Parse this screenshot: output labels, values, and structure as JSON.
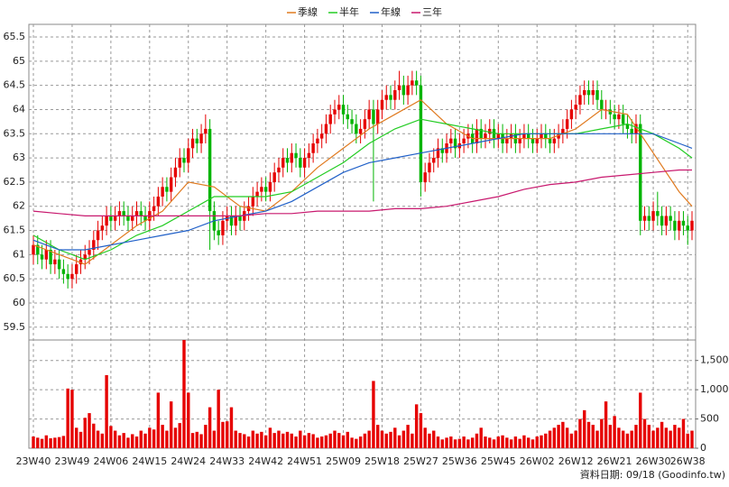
{
  "chart_data": {
    "type": "candlestick",
    "legend": "top",
    "grid": true,
    "up_color": "#e60000",
    "down_color": "#00b400",
    "footer": "資料日期: 09/18  (Goodinfo.tw)",
    "categories": [
      "23W40",
      null,
      null,
      null,
      null,
      null,
      null,
      null,
      null,
      "23W49",
      null,
      null,
      null,
      null,
      null,
      null,
      null,
      null,
      "24W06",
      null,
      null,
      null,
      null,
      null,
      null,
      null,
      null,
      "24W15",
      null,
      null,
      null,
      null,
      null,
      null,
      null,
      null,
      "24W24",
      null,
      null,
      null,
      null,
      null,
      null,
      null,
      null,
      "24W33",
      null,
      null,
      null,
      null,
      null,
      null,
      null,
      null,
      "24W42",
      null,
      null,
      null,
      null,
      null,
      null,
      null,
      null,
      "24W51",
      null,
      null,
      null,
      null,
      null,
      null,
      null,
      null,
      "25W09",
      null,
      null,
      null,
      null,
      null,
      null,
      null,
      null,
      "25W18",
      null,
      null,
      null,
      null,
      null,
      null,
      null,
      null,
      "25W27",
      null,
      null,
      null,
      null,
      null,
      null,
      null,
      null,
      "25W36",
      null,
      null,
      null,
      null,
      null,
      null,
      null,
      null,
      "25W45",
      null,
      null,
      null,
      null,
      null,
      null,
      null,
      null,
      "26W02",
      null,
      null,
      null,
      null,
      null,
      null,
      null,
      null,
      "26W12",
      null,
      null,
      null,
      null,
      null,
      null,
      null,
      null,
      "26W21",
      null,
      null,
      null,
      null,
      null,
      null,
      null,
      null,
      "26W30",
      null,
      null,
      null,
      null,
      null,
      null,
      null,
      "26W38",
      null
    ],
    "open": [
      61.0,
      61.2,
      61.0,
      60.9,
      61.1,
      60.8,
      60.9,
      60.7,
      60.6,
      60.5,
      60.6,
      60.8,
      60.9,
      61.0,
      61.1,
      61.3,
      61.5,
      61.6,
      61.8,
      61.7,
      61.8,
      61.9,
      61.8,
      61.7,
      61.8,
      61.9,
      61.8,
      61.7,
      61.9,
      62.0,
      62.2,
      62.4,
      62.3,
      62.6,
      62.8,
      63.0,
      62.9,
      63.2,
      63.4,
      63.3,
      63.5,
      63.6,
      61.9,
      61.5,
      61.4,
      61.7,
      61.8,
      61.6,
      61.8,
      61.7,
      61.9,
      62.0,
      62.2,
      62.3,
      62.4,
      62.3,
      62.5,
      62.7,
      62.8,
      63.0,
      62.9,
      63.1,
      63.0,
      62.8,
      63.0,
      63.1,
      63.3,
      63.4,
      63.5,
      63.7,
      63.9,
      64.0,
      64.1,
      63.9,
      63.8,
      63.7,
      63.5,
      63.6,
      63.8,
      64.0,
      63.7,
      64.0,
      64.2,
      64.3,
      64.2,
      64.4,
      64.5,
      64.3,
      64.5,
      64.6,
      64.5,
      62.5,
      62.7,
      62.9,
      63.0,
      63.2,
      63.1,
      63.3,
      63.4,
      63.2,
      63.3,
      63.4,
      63.5,
      63.3,
      63.6,
      63.4,
      63.5,
      63.6,
      63.4,
      63.5,
      63.3,
      63.4,
      63.5,
      63.3,
      63.4,
      63.5,
      63.4,
      63.3,
      63.4,
      63.5,
      63.4,
      63.3,
      63.4,
      63.5,
      63.6,
      63.8,
      64.0,
      64.1,
      64.3,
      64.4,
      64.3,
      64.4,
      64.2,
      64.0,
      64.0,
      63.9,
      63.8,
      63.9,
      63.7,
      63.6,
      63.5,
      63.7,
      61.7,
      61.8,
      61.7,
      61.9,
      61.8,
      61.6,
      61.8,
      61.7,
      61.5,
      61.7,
      61.6,
      61.5
    ],
    "high": [
      61.4,
      61.4,
      61.2,
      61.3,
      61.3,
      61.1,
      61.1,
      60.9,
      60.8,
      60.8,
      61.0,
      61.1,
      61.2,
      61.3,
      61.5,
      61.7,
      61.8,
      62.0,
      62.0,
      62.0,
      62.1,
      62.1,
      62.0,
      62.0,
      62.1,
      62.1,
      62.0,
      62.1,
      62.2,
      62.4,
      62.6,
      62.6,
      62.8,
      63.0,
      63.2,
      63.2,
      63.4,
      63.6,
      63.6,
      63.7,
      63.9,
      63.8,
      62.1,
      61.7,
      61.9,
      62.0,
      62.0,
      62.0,
      62.0,
      62.1,
      62.2,
      62.4,
      62.5,
      62.6,
      62.6,
      62.7,
      62.9,
      63.0,
      63.2,
      63.2,
      63.3,
      63.3,
      63.2,
      63.2,
      63.3,
      63.5,
      63.6,
      63.7,
      63.9,
      64.1,
      64.2,
      64.3,
      64.3,
      64.1,
      64.0,
      63.9,
      63.8,
      64.0,
      64.2,
      64.2,
      64.2,
      64.4,
      64.5,
      64.5,
      64.6,
      64.8,
      64.7,
      64.7,
      64.8,
      64.8,
      64.7,
      62.9,
      63.1,
      63.2,
      63.4,
      63.4,
      63.5,
      63.6,
      63.6,
      63.5,
      63.6,
      63.7,
      63.7,
      63.8,
      63.8,
      63.7,
      63.8,
      63.8,
      63.7,
      63.7,
      63.6,
      63.7,
      63.7,
      63.6,
      63.7,
      63.7,
      63.6,
      63.6,
      63.7,
      63.7,
      63.6,
      63.6,
      63.7,
      63.8,
      64.0,
      64.2,
      64.3,
      64.5,
      64.6,
      64.6,
      64.6,
      64.6,
      64.4,
      64.2,
      64.2,
      64.1,
      64.1,
      64.1,
      63.9,
      63.8,
      63.9,
      63.9,
      62.0,
      62.0,
      62.1,
      62.3,
      62.0,
      62.0,
      62.0,
      61.9,
      61.9,
      61.9,
      61.8,
      61.9
    ],
    "low": [
      60.8,
      60.8,
      60.7,
      60.7,
      60.6,
      60.6,
      60.5,
      60.4,
      60.3,
      60.3,
      60.4,
      60.6,
      60.7,
      60.8,
      60.9,
      61.1,
      61.3,
      61.4,
      61.5,
      61.5,
      61.6,
      61.6,
      61.5,
      61.5,
      61.6,
      61.6,
      61.5,
      61.5,
      61.7,
      61.8,
      62.0,
      62.1,
      62.1,
      62.4,
      62.6,
      62.7,
      62.7,
      63.0,
      63.1,
      63.1,
      63.3,
      61.1,
      61.3,
      61.2,
      61.2,
      61.5,
      61.4,
      61.4,
      61.5,
      61.5,
      61.7,
      61.8,
      62.0,
      62.1,
      62.1,
      62.1,
      62.3,
      62.5,
      62.6,
      62.7,
      62.7,
      62.8,
      62.6,
      62.6,
      62.8,
      62.9,
      63.1,
      63.2,
      63.3,
      63.5,
      63.7,
      63.8,
      63.7,
      63.6,
      63.5,
      63.3,
      63.3,
      63.4,
      63.6,
      62.1,
      63.5,
      63.8,
      64.0,
      64.0,
      64.0,
      64.2,
      64.1,
      64.1,
      64.3,
      64.3,
      62.2,
      62.3,
      62.5,
      62.7,
      62.8,
      62.9,
      62.9,
      63.1,
      63.0,
      63.0,
      63.1,
      63.2,
      63.1,
      63.1,
      63.2,
      63.2,
      63.3,
      63.2,
      63.2,
      63.1,
      63.1,
      63.2,
      63.1,
      63.1,
      63.2,
      63.2,
      63.1,
      63.1,
      63.2,
      63.2,
      63.1,
      63.1,
      63.2,
      63.3,
      63.4,
      63.6,
      63.8,
      63.9,
      64.1,
      64.1,
      64.1,
      64.0,
      63.8,
      63.8,
      63.7,
      63.6,
      63.6,
      63.5,
      63.4,
      63.3,
      63.3,
      61.4,
      61.5,
      61.5,
      61.5,
      61.6,
      61.4,
      61.4,
      61.5,
      61.3,
      61.3,
      61.4,
      61.2,
      61.3
    ],
    "close": [
      61.2,
      61.0,
      60.9,
      61.1,
      60.8,
      60.9,
      60.7,
      60.6,
      60.5,
      60.6,
      60.8,
      60.9,
      61.0,
      61.1,
      61.3,
      61.5,
      61.6,
      61.8,
      61.7,
      61.8,
      61.9,
      61.8,
      61.7,
      61.8,
      61.9,
      61.8,
      61.7,
      61.9,
      62.0,
      62.2,
      62.4,
      62.3,
      62.6,
      62.8,
      63.0,
      62.9,
      63.2,
      63.4,
      63.3,
      63.5,
      63.6,
      61.9,
      61.5,
      61.4,
      61.7,
      61.8,
      61.6,
      61.8,
      61.7,
      61.9,
      62.0,
      62.2,
      62.3,
      62.4,
      62.3,
      62.5,
      62.7,
      62.8,
      63.0,
      62.9,
      63.1,
      63.0,
      62.8,
      63.0,
      63.1,
      63.3,
      63.4,
      63.5,
      63.7,
      63.9,
      64.0,
      64.1,
      63.9,
      63.8,
      63.7,
      63.5,
      63.6,
      63.8,
      64.0,
      63.7,
      64.0,
      64.2,
      64.3,
      64.2,
      64.4,
      64.5,
      64.3,
      64.5,
      64.6,
      64.5,
      62.5,
      62.7,
      62.9,
      63.0,
      63.2,
      63.1,
      63.3,
      63.4,
      63.2,
      63.3,
      63.4,
      63.5,
      63.3,
      63.6,
      63.4,
      63.5,
      63.6,
      63.4,
      63.5,
      63.3,
      63.4,
      63.5,
      63.3,
      63.4,
      63.5,
      63.4,
      63.3,
      63.4,
      63.5,
      63.4,
      63.3,
      63.4,
      63.5,
      63.6,
      63.8,
      64.0,
      64.1,
      64.3,
      64.4,
      64.3,
      64.4,
      64.2,
      64.0,
      64.0,
      63.9,
      63.8,
      63.9,
      63.7,
      63.6,
      63.5,
      63.7,
      61.7,
      61.8,
      61.7,
      61.9,
      61.8,
      61.6,
      61.8,
      61.7,
      61.5,
      61.7,
      61.6,
      61.5,
      61.7
    ],
    "ylim": [
      59.25,
      65.75
    ],
    "yticks": [
      59.5,
      60,
      60.5,
      61,
      61.5,
      62,
      62.5,
      63,
      63.5,
      64,
      64.5,
      65,
      65.5
    ],
    "x": [
      0,
      6,
      12,
      18,
      24,
      30,
      36,
      42,
      48,
      54,
      60,
      66,
      72,
      78,
      84,
      90,
      96,
      102,
      108,
      114,
      120,
      126,
      132,
      138,
      144,
      150,
      153
    ],
    "series": [
      {
        "name": "季線",
        "color": "#e07a1f",
        "values": [
          61.2,
          61.0,
          60.8,
          61.2,
          61.6,
          61.9,
          62.5,
          62.4,
          62.0,
          61.9,
          62.3,
          62.8,
          63.2,
          63.6,
          63.9,
          64.2,
          63.7,
          63.4,
          63.4,
          63.4,
          63.4,
          63.6,
          64.0,
          63.9,
          63.1,
          62.3,
          62.0
        ]
      },
      {
        "name": "半年",
        "color": "#22cc22",
        "values": [
          61.4,
          61.1,
          60.9,
          61.1,
          61.4,
          61.6,
          61.9,
          62.2,
          62.2,
          62.2,
          62.3,
          62.6,
          62.9,
          63.3,
          63.6,
          63.8,
          63.7,
          63.6,
          63.5,
          63.5,
          63.5,
          63.5,
          63.6,
          63.7,
          63.5,
          63.2,
          63.0
        ]
      },
      {
        "name": "年線",
        "color": "#2060c8",
        "values": [
          61.3,
          61.1,
          61.1,
          61.2,
          61.3,
          61.4,
          61.5,
          61.7,
          61.8,
          61.9,
          62.1,
          62.4,
          62.7,
          62.9,
          63.0,
          63.1,
          63.2,
          63.3,
          63.4,
          63.5,
          63.5,
          63.5,
          63.5,
          63.5,
          63.5,
          63.3,
          63.2
        ]
      },
      {
        "name": "三年",
        "color": "#c8186e",
        "values": [
          61.9,
          61.85,
          61.8,
          61.8,
          61.8,
          61.8,
          61.8,
          61.8,
          61.8,
          61.85,
          61.85,
          61.9,
          61.9,
          61.9,
          61.95,
          61.95,
          62.0,
          62.1,
          62.2,
          62.35,
          62.45,
          62.5,
          62.6,
          62.65,
          62.7,
          62.75,
          62.75
        ]
      }
    ],
    "volume": {
      "color": "#e60000",
      "ylim": [
        0,
        1850
      ],
      "yticks": [
        0,
        500,
        {
          "value": 1000,
          "label": "1,000"
        },
        {
          "value": 1500,
          "label": "1,500"
        }
      ],
      "values": [
        200,
        180,
        160,
        220,
        170,
        180,
        190,
        210,
        1020,
        1000,
        350,
        280,
        520,
        600,
        420,
        300,
        250,
        1250,
        380,
        300,
        220,
        260,
        180,
        240,
        200,
        300,
        250,
        350,
        320,
        950,
        400,
        300,
        800,
        350,
        430,
        1850,
        950,
        260,
        280,
        240,
        400,
        700,
        300,
        1000,
        450,
        460,
        700,
        300,
        260,
        240,
        200,
        300,
        250,
        280,
        220,
        350,
        260,
        300,
        250,
        280,
        250,
        200,
        300,
        220,
        260,
        240,
        180,
        200,
        220,
        250,
        300,
        260,
        220,
        280,
        180,
        160,
        200,
        250,
        300,
        1150,
        400,
        300,
        250,
        280,
        350,
        220,
        300,
        400,
        250,
        750,
        600,
        350,
        250,
        300,
        200,
        150,
        180,
        200,
        150,
        160,
        200,
        150,
        180,
        250,
        350,
        200,
        180,
        150,
        200,
        220,
        180,
        150,
        200,
        160,
        220,
        180,
        150,
        200,
        220,
        250,
        300,
        350,
        400,
        450,
        350,
        250,
        300,
        500,
        650,
        450,
        400,
        300,
        500,
        800,
        400,
        550,
        350,
        300,
        250,
        300,
        400,
        950,
        500,
        400,
        300,
        350,
        450,
        350,
        300,
        400,
        350,
        500,
        250,
        300
      ]
    }
  }
}
